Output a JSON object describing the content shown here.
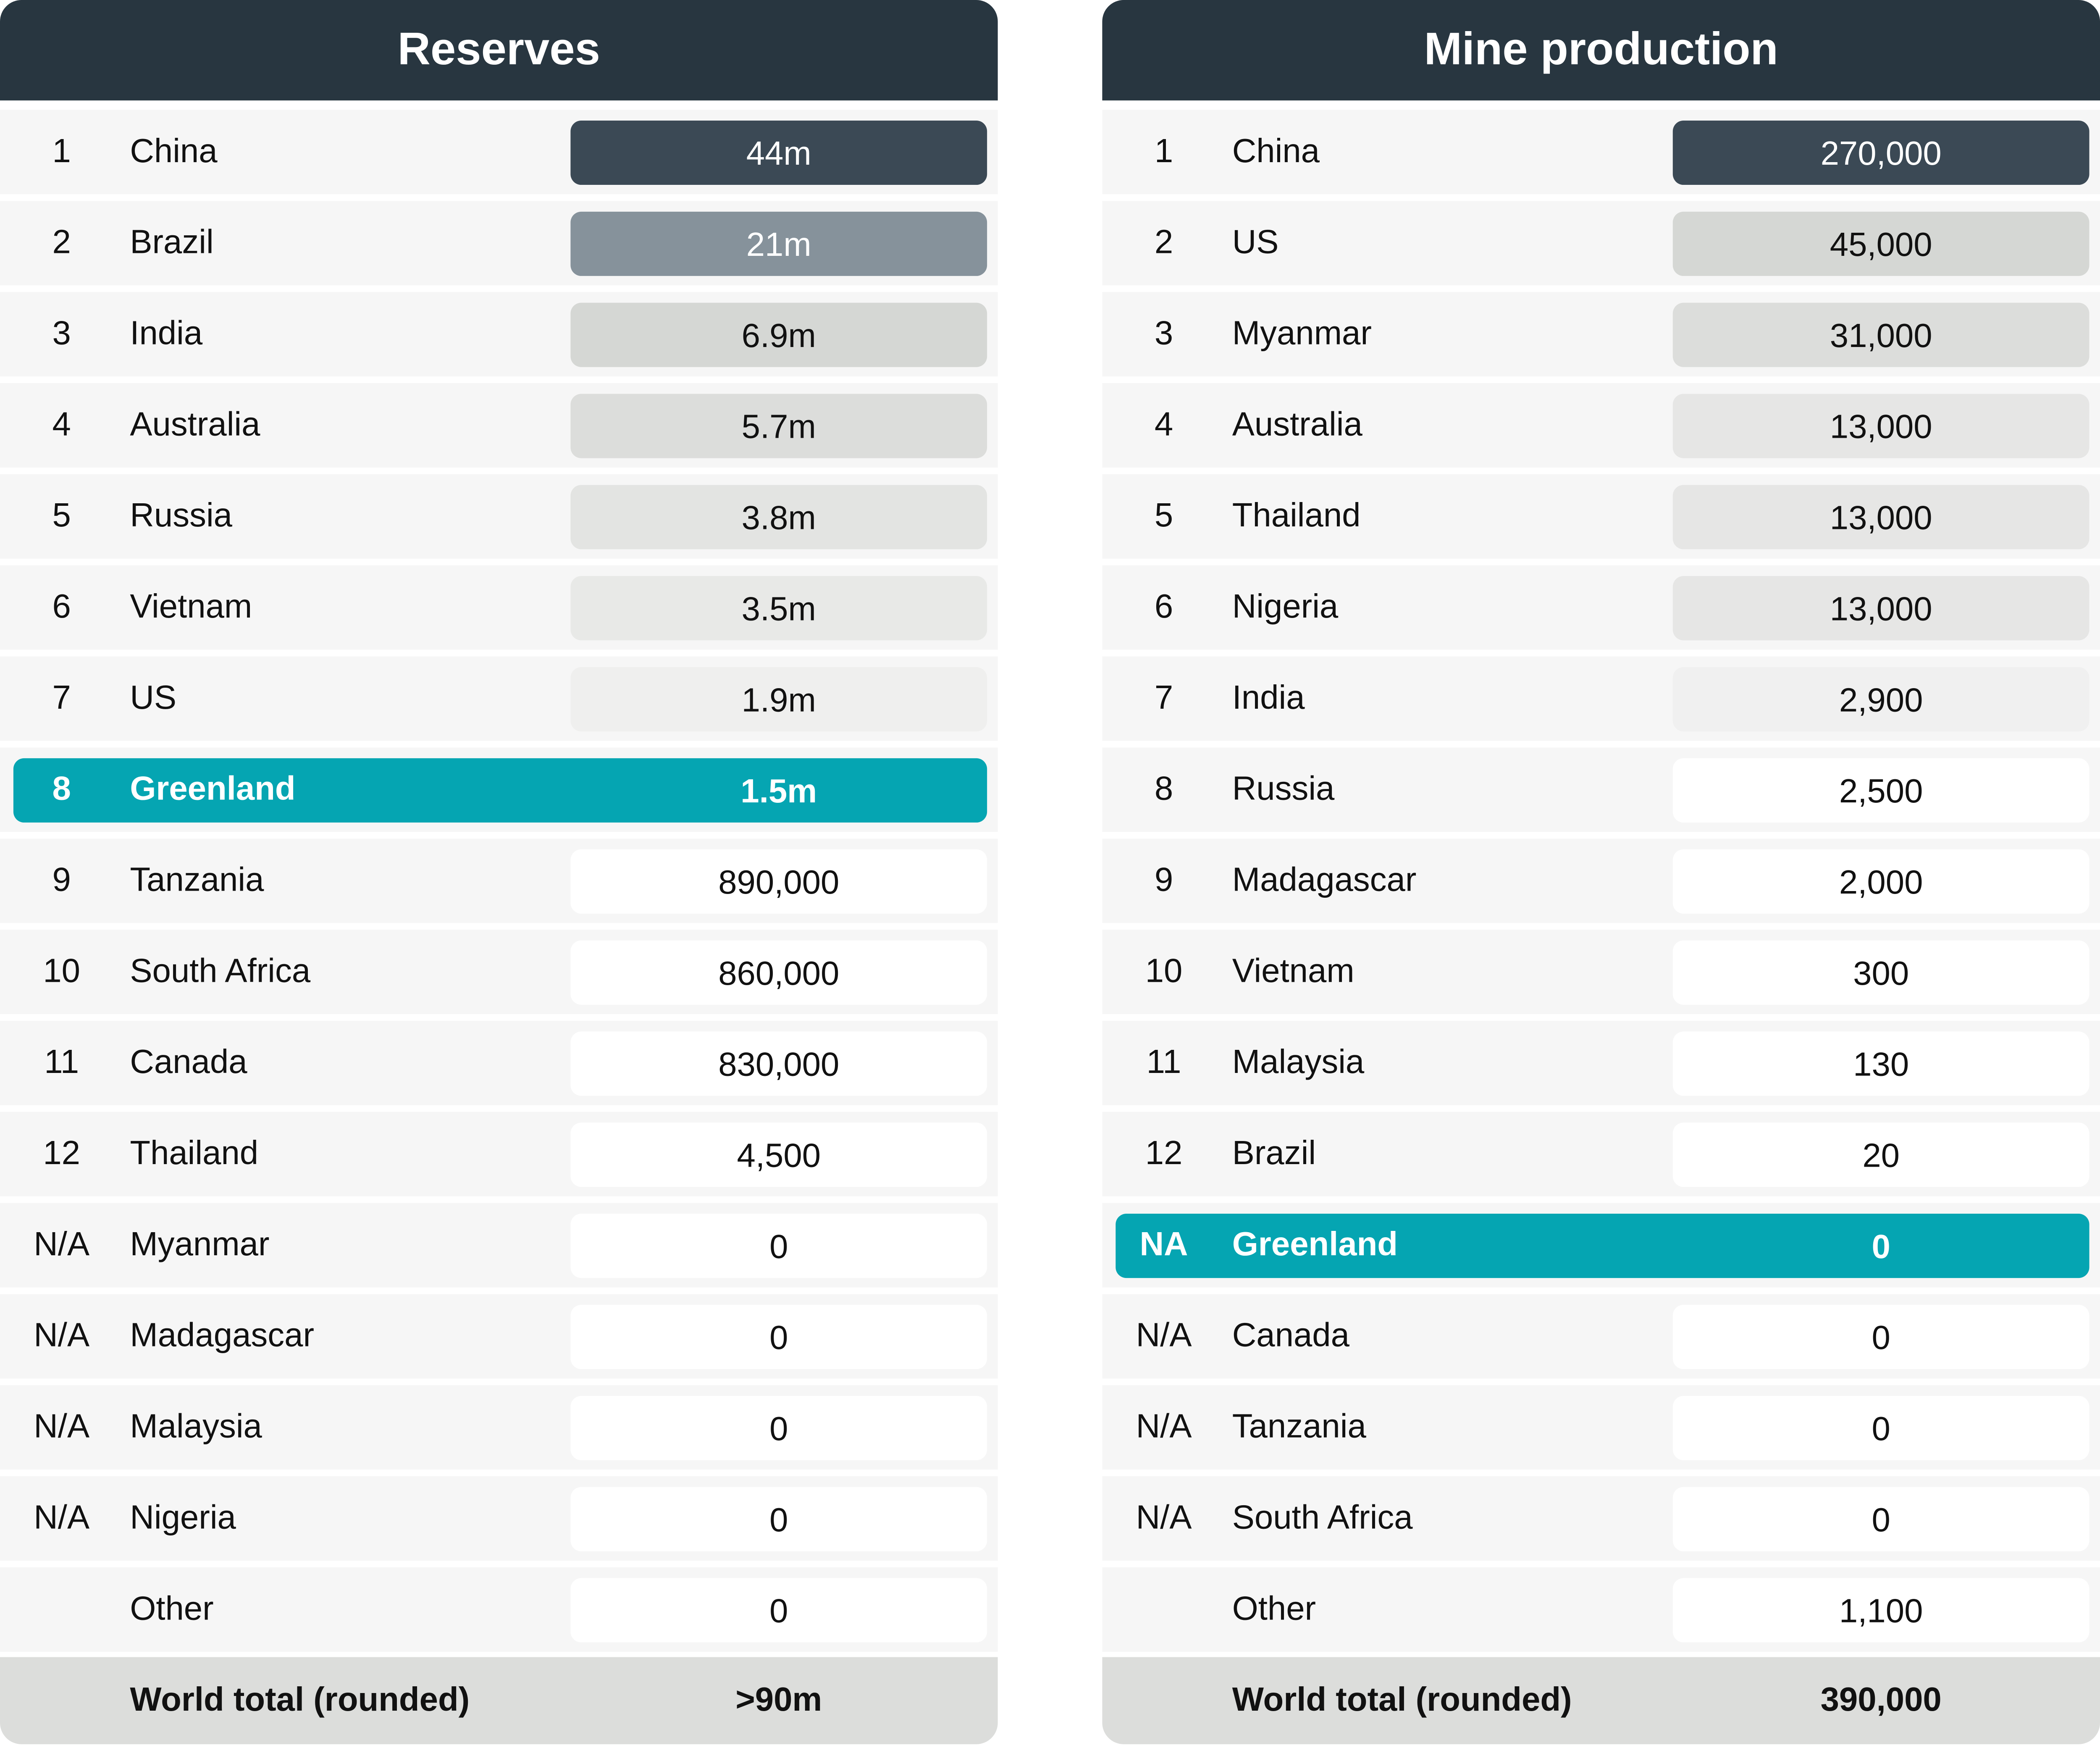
{
  "highlight_color": "#05a5b2",
  "header_color": "#283640",
  "panels": [
    {
      "title": "Reserves",
      "rows": [
        {
          "rank": "1",
          "country": "China",
          "value": "44m",
          "fill": "#3b4955",
          "text_color": "#ffffff"
        },
        {
          "rank": "2",
          "country": "Brazil",
          "value": "21m",
          "fill": "#86929b",
          "text_color": "#ffffff"
        },
        {
          "rank": "3",
          "country": "India",
          "value": "6.9m",
          "fill": "#d5d7d4"
        },
        {
          "rank": "4",
          "country": "Australia",
          "value": "5.7m",
          "fill": "#dcdddb"
        },
        {
          "rank": "5",
          "country": "Russia",
          "value": "3.8m",
          "fill": "#e3e4e2"
        },
        {
          "rank": "6",
          "country": "Vietnam",
          "value": "3.5m",
          "fill": "#e8e9e7"
        },
        {
          "rank": "7",
          "country": "US",
          "value": "1.9m",
          "fill": "#efefee"
        },
        {
          "rank": "8",
          "country": "Greenland",
          "value": "1.5m",
          "highlight": true
        },
        {
          "rank": "9",
          "country": "Tanzania",
          "value": "890,000",
          "fill": "#ffffff"
        },
        {
          "rank": "10",
          "country": "South Africa",
          "value": "860,000",
          "fill": "#ffffff"
        },
        {
          "rank": "11",
          "country": "Canada",
          "value": "830,000",
          "fill": "#ffffff"
        },
        {
          "rank": "12",
          "country": "Thailand",
          "value": "4,500",
          "fill": "#ffffff"
        },
        {
          "rank": "N/A",
          "country": "Myanmar",
          "value": "0",
          "fill": "#ffffff"
        },
        {
          "rank": "N/A",
          "country": "Madagascar",
          "value": "0",
          "fill": "#ffffff"
        },
        {
          "rank": "N/A",
          "country": "Malaysia",
          "value": "0",
          "fill": "#ffffff"
        },
        {
          "rank": "N/A",
          "country": "Nigeria",
          "value": "0",
          "fill": "#ffffff"
        },
        {
          "rank": "",
          "country": "Other",
          "value": "0",
          "fill": "#ffffff"
        }
      ],
      "total_label": "World total (rounded)",
      "total_value": ">90m"
    },
    {
      "title": "Mine production",
      "rows": [
        {
          "rank": "1",
          "country": "China",
          "value": "270,000",
          "fill": "#3b4955",
          "text_color": "#ffffff"
        },
        {
          "rank": "2",
          "country": "US",
          "value": "45,000",
          "fill": "#d5d7d4"
        },
        {
          "rank": "3",
          "country": "Myanmar",
          "value": "31,000",
          "fill": "#dcdddb"
        },
        {
          "rank": "4",
          "country": "Australia",
          "value": "13,000",
          "fill": "#e6e6e5"
        },
        {
          "rank": "5",
          "country": "Thailand",
          "value": "13,000",
          "fill": "#e6e6e5"
        },
        {
          "rank": "6",
          "country": "Nigeria",
          "value": "13,000",
          "fill": "#e6e6e5"
        },
        {
          "rank": "7",
          "country": "India",
          "value": "2,900",
          "fill": "#f0f0f0"
        },
        {
          "rank": "8",
          "country": "Russia",
          "value": "2,500",
          "fill": "#ffffff"
        },
        {
          "rank": "9",
          "country": "Madagascar",
          "value": "2,000",
          "fill": "#ffffff"
        },
        {
          "rank": "10",
          "country": "Vietnam",
          "value": "300",
          "fill": "#ffffff"
        },
        {
          "rank": "11",
          "country": "Malaysia",
          "value": "130",
          "fill": "#ffffff"
        },
        {
          "rank": "12",
          "country": "Brazil",
          "value": "20",
          "fill": "#ffffff"
        },
        {
          "rank": "NA",
          "country": "Greenland",
          "value": "0",
          "highlight": true
        },
        {
          "rank": "N/A",
          "country": "Canada",
          "value": "0",
          "fill": "#ffffff"
        },
        {
          "rank": "N/A",
          "country": "Tanzania",
          "value": "0",
          "fill": "#ffffff"
        },
        {
          "rank": "N/A",
          "country": "South Africa",
          "value": "0",
          "fill": "#ffffff"
        },
        {
          "rank": "",
          "country": "Other",
          "value": "1,100",
          "fill": "#ffffff"
        }
      ],
      "total_label": "World total (rounded)",
      "total_value": "390,000"
    }
  ]
}
